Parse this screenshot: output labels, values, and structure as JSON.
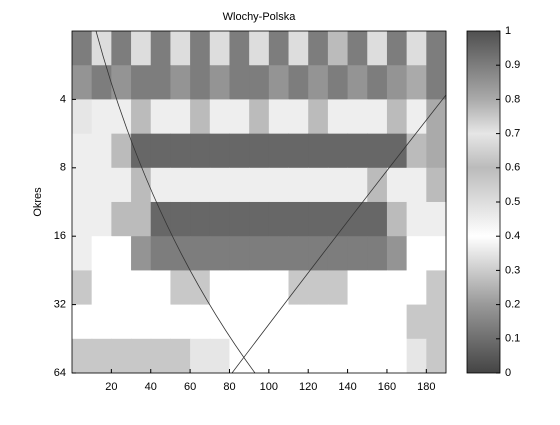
{
  "chart_data": {
    "type": "heatmap",
    "title": "Wlochy-Polska",
    "y_label": "Okres",
    "xbins": [
      0,
      10,
      20,
      30,
      40,
      50,
      60,
      70,
      80,
      90,
      100,
      110,
      120,
      130,
      140,
      150,
      160,
      170,
      180,
      190
    ],
    "ybins": [
      2,
      2.83,
      4,
      5.66,
      8,
      11.31,
      16,
      22.63,
      32,
      45.25,
      64
    ],
    "values": [
      [
        0.9,
        0.5,
        0.9,
        0.5,
        0.9,
        0.5,
        0.9,
        0.5,
        0.9,
        0.5,
        0.9,
        0.5,
        0.9,
        0.6,
        0.9,
        0.5,
        0.9,
        0.5,
        0.9
      ],
      [
        0.85,
        0.9,
        0.85,
        0.9,
        0.9,
        0.85,
        0.9,
        0.85,
        0.9,
        0.9,
        0.85,
        0.9,
        0.85,
        0.9,
        0.85,
        0.9,
        0.85,
        0.8,
        0.9
      ],
      [
        0.7,
        0.45,
        0.45,
        0.6,
        0.45,
        0.45,
        0.6,
        0.45,
        0.45,
        0.6,
        0.45,
        0.45,
        0.6,
        0.45,
        0.45,
        0.45,
        0.6,
        0.45,
        0.8
      ],
      [
        0.45,
        0.45,
        0.6,
        0.95,
        0.95,
        0.95,
        0.95,
        0.95,
        0.95,
        0.95,
        0.95,
        0.95,
        0.95,
        0.95,
        0.95,
        0.95,
        0.95,
        0.6,
        0.8
      ],
      [
        0.45,
        0.45,
        0.45,
        0.6,
        0.45,
        0.45,
        0.45,
        0.45,
        0.45,
        0.45,
        0.45,
        0.45,
        0.45,
        0.45,
        0.45,
        0.6,
        0.45,
        0.45,
        0.6
      ],
      [
        0.45,
        0.45,
        0.6,
        0.6,
        0.95,
        0.95,
        0.95,
        0.95,
        0.95,
        0.95,
        0.95,
        0.95,
        0.95,
        0.95,
        0.95,
        0.95,
        0.6,
        0.45,
        0.45
      ],
      [
        0.45,
        0.4,
        0.4,
        0.85,
        0.9,
        0.9,
        0.9,
        0.9,
        0.9,
        0.9,
        0.9,
        0.9,
        0.9,
        0.9,
        0.9,
        0.9,
        0.85,
        0.4,
        0.4
      ],
      [
        0.75,
        0.4,
        0.4,
        0.4,
        0.4,
        0.75,
        0.75,
        0.4,
        0.4,
        0.4,
        0.4,
        0.75,
        0.75,
        0.75,
        0.4,
        0.4,
        0.4,
        0.4,
        0.75
      ],
      [
        0.4,
        0.4,
        0.4,
        0.4,
        0.4,
        0.4,
        0.4,
        0.4,
        0.4,
        0.4,
        0.4,
        0.4,
        0.4,
        0.4,
        0.4,
        0.4,
        0.4,
        0.75,
        0.75
      ],
      [
        0.75,
        0.75,
        0.75,
        0.75,
        0.75,
        0.75,
        0.7,
        0.7,
        0.4,
        0.4,
        0.4,
        0.4,
        0.4,
        0.4,
        0.4,
        0.4,
        0.4,
        0.7,
        0.75
      ]
    ],
    "xlim": [
      0,
      190
    ],
    "xticks": [
      20,
      40,
      60,
      80,
      100,
      120,
      140,
      160,
      180
    ],
    "ylim": [
      2,
      64
    ],
    "ylog": true,
    "y_reversed": true,
    "yticks": [
      4,
      8,
      16,
      32,
      64
    ],
    "clim": [
      0,
      1
    ],
    "cticks": [
      0,
      0.1,
      0.2,
      0.3,
      0.4,
      0.5,
      0.6,
      0.7,
      0.8,
      0.9,
      1
    ],
    "colormap": [
      {
        "value": 0,
        "color": "#444444"
      },
      {
        "value": 0.2,
        "color": "#999999"
      },
      {
        "value": 0.4,
        "color": "#ffffff"
      },
      {
        "value": 0.6,
        "color": "#bbbbbb"
      },
      {
        "value": 0.7,
        "color": "#e6e6e6"
      },
      {
        "value": 0.8,
        "color": "#aaaaaa"
      },
      {
        "value": 1,
        "color": "#505050"
      }
    ]
  }
}
